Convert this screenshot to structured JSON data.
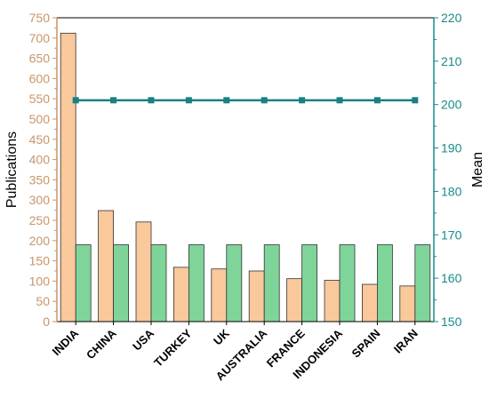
{
  "chart_data": {
    "type": "bar",
    "categories": [
      "INDIA",
      "CHINA",
      "USA",
      "TURKEY",
      "UK",
      "AUSTRALIA",
      "FRANCE",
      "INDONESIA",
      "SPAIN",
      "IRAN"
    ],
    "series": [
      {
        "name": "Publications",
        "axis": "left",
        "type": "bar",
        "color": "#f9c89b",
        "values": [
          712,
          274,
          246,
          134,
          130,
          125,
          106,
          102,
          92,
          88
        ]
      },
      {
        "name": "Mean",
        "axis": "right",
        "type": "bar",
        "color": "#7fd49a",
        "values": [
          167.7,
          167.7,
          167.7,
          167.7,
          167.7,
          167.7,
          167.7,
          167.7,
          167.7,
          167.7
        ]
      },
      {
        "name": "Mean",
        "axis": "right",
        "type": "line",
        "color": "#1a8080",
        "values": [
          201,
          201,
          201,
          201,
          201,
          201,
          201,
          201,
          201,
          201
        ]
      }
    ],
    "ylabel": "Publications",
    "y2label": "Mean",
    "ylim": [
      0,
      750
    ],
    "yticks": [
      0,
      50,
      100,
      150,
      200,
      250,
      300,
      350,
      400,
      450,
      500,
      550,
      600,
      650,
      700,
      750
    ],
    "y2lim": [
      150,
      220
    ],
    "y2ticks": [
      150,
      160,
      170,
      180,
      190,
      200,
      210,
      220
    ],
    "left_axis_color": "#c8966a",
    "right_axis_color": "#1a8a8a",
    "grid": false,
    "legend": "none"
  }
}
